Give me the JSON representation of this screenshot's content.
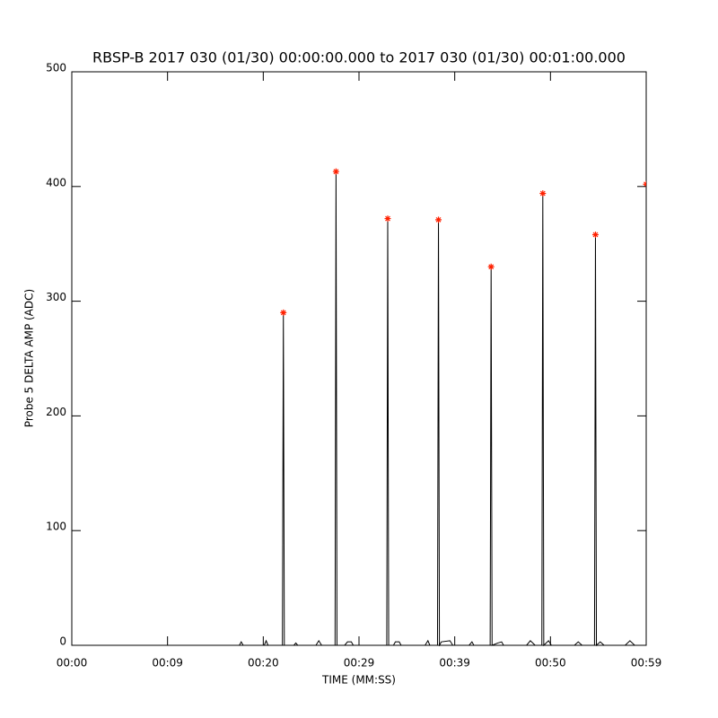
{
  "chart_data": {
    "type": "line",
    "title": "RBSP-B 2017 030 (01/30) 00:00:00.000 to 2017 030 (01/30) 00:01:00.000",
    "x_label": "TIME (MM:SS)",
    "y_label": "Probe 5 DELTA AMP (ADC)",
    "xlim": [
      0,
      60
    ],
    "xticks": [
      {
        "value": 0,
        "label": "00:00"
      },
      {
        "value": 10,
        "label": "00:09"
      },
      {
        "value": 20,
        "label": "00:20"
      },
      {
        "value": 30,
        "label": "00:29"
      },
      {
        "value": 40,
        "label": "00:39"
      },
      {
        "value": 50,
        "label": "00:50"
      },
      {
        "value": 60,
        "label": "00:59"
      }
    ],
    "ylim": [
      0,
      500
    ],
    "yticks": [
      0,
      100,
      200,
      300,
      400,
      500
    ],
    "series": [
      {
        "color": "#000000",
        "marker": "none",
        "x": [
          0,
          17.5,
          17.7,
          17.9,
          20.1,
          20.3,
          20.5,
          22.0,
          22.1,
          22.2,
          23.2,
          23.4,
          23.6,
          25.5,
          25.8,
          26.1,
          27.5,
          27.6,
          27.7,
          28.5,
          28.8,
          29.2,
          29.4,
          32.9,
          33.0,
          33.1,
          33.6,
          33.8,
          34.2,
          34.4,
          36.9,
          37.2,
          37.4,
          38.2,
          38.3,
          38.4,
          38.6,
          39.5,
          39.8,
          41.5,
          41.8,
          42.0,
          43.7,
          43.8,
          43.9,
          44.5,
          44.9,
          45.1,
          47.5,
          47.9,
          48.4,
          49.1,
          49.2,
          49.3,
          49.8,
          50.1,
          52.5,
          52.9,
          53.3,
          54.6,
          54.7,
          54.8,
          55.2,
          55.6,
          57.8,
          58.3,
          58.8,
          60
        ],
        "values": [
          0,
          0,
          3,
          0,
          0,
          4,
          0,
          0,
          290,
          0,
          0,
          2,
          0,
          0,
          4,
          0,
          0,
          413,
          0,
          0,
          3,
          3,
          0,
          0,
          372,
          0,
          0,
          3,
          3,
          0,
          0,
          4,
          0,
          0,
          371,
          0,
          3,
          4,
          0,
          0,
          3,
          0,
          0,
          330,
          0,
          2,
          3,
          0,
          0,
          4,
          0,
          0,
          394,
          0,
          4,
          0,
          0,
          3,
          0,
          0,
          358,
          0,
          3,
          0,
          0,
          4,
          0,
          0
        ]
      },
      {
        "color": "#ff2000",
        "marker": "asterisk",
        "x": [
          22.1,
          27.6,
          33.0,
          38.3,
          43.8,
          49.2,
          54.7,
          60.0
        ],
        "values": [
          290,
          413,
          372,
          371,
          330,
          394,
          358,
          402
        ]
      }
    ]
  }
}
